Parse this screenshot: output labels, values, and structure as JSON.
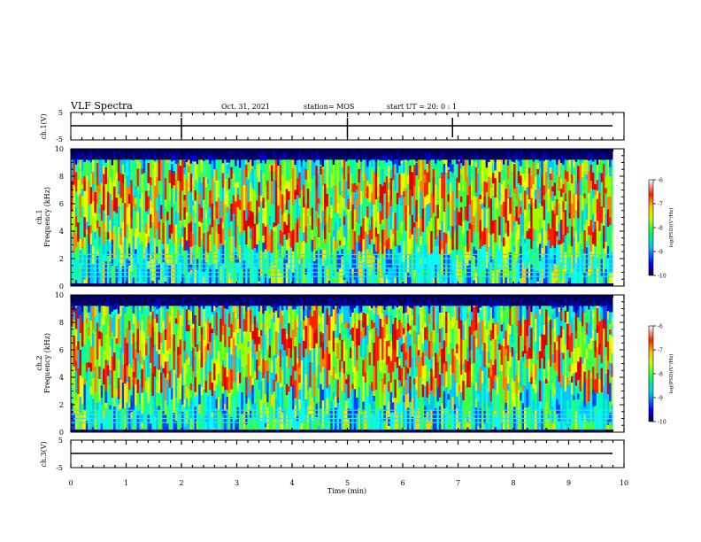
{
  "header": {
    "title": "VLF Spectra",
    "date": "Oct. 31, 2021",
    "station": "station= MOS",
    "start": "start  UT =   20: 0  : 1"
  },
  "chart_data": [
    {
      "type": "line",
      "ylabel": "ch.1(V)",
      "ylim": [
        -5,
        5
      ],
      "yticks": [
        "5",
        "-5"
      ],
      "series": [
        {
          "values_description_level": 0
        }
      ]
    },
    {
      "type": "heatmap",
      "ylabel": "ch.1\nFrequency (kHz)",
      "ylabel_lines": [
        "ch.1",
        "Frequency (kHz)"
      ],
      "xlim": [
        0,
        10
      ],
      "ylim": [
        0,
        10
      ],
      "yticks": [
        "10",
        "8",
        "6",
        "4",
        "2",
        "0"
      ],
      "colorbar": {
        "label": "log(PSD)(V²/Hz)",
        "range": [
          -10,
          -6
        ],
        "ticks": [
          "-6",
          "-7",
          "-8",
          "-9",
          "-10"
        ]
      },
      "cutoff_khz": 9.2,
      "tone_lines_khz": [
        0.7,
        1.0,
        1.3,
        1.6,
        2.0,
        2.3
      ]
    },
    {
      "type": "heatmap",
      "ylabel_lines": [
        "ch.2",
        "Frequency (kHz)"
      ],
      "xlim": [
        0,
        10
      ],
      "ylim": [
        0,
        10
      ],
      "yticks": [
        "10",
        "8",
        "6",
        "4",
        "2",
        "0"
      ],
      "colorbar": {
        "label": "log(PSD)(V²/Hz)",
        "range": [
          -10,
          -6
        ],
        "ticks": [
          "-6",
          "-7",
          "-8",
          "-9",
          "-10"
        ]
      },
      "cutoff_khz": 9.2,
      "tone_lines_khz": [
        0.7,
        1.0,
        1.3,
        1.6
      ]
    },
    {
      "type": "line",
      "ylabel": "ch.3(V)",
      "ylim": [
        -5,
        5
      ],
      "yticks": [
        "5",
        "-5"
      ],
      "series": [
        {
          "values_description_level": 0
        }
      ]
    }
  ],
  "xaxis": {
    "label": "Time  (min)",
    "range": [
      0,
      10
    ],
    "ticks": [
      "0",
      "1",
      "2",
      "3",
      "4",
      "5",
      "6",
      "7",
      "8",
      "9",
      "10"
    ]
  }
}
